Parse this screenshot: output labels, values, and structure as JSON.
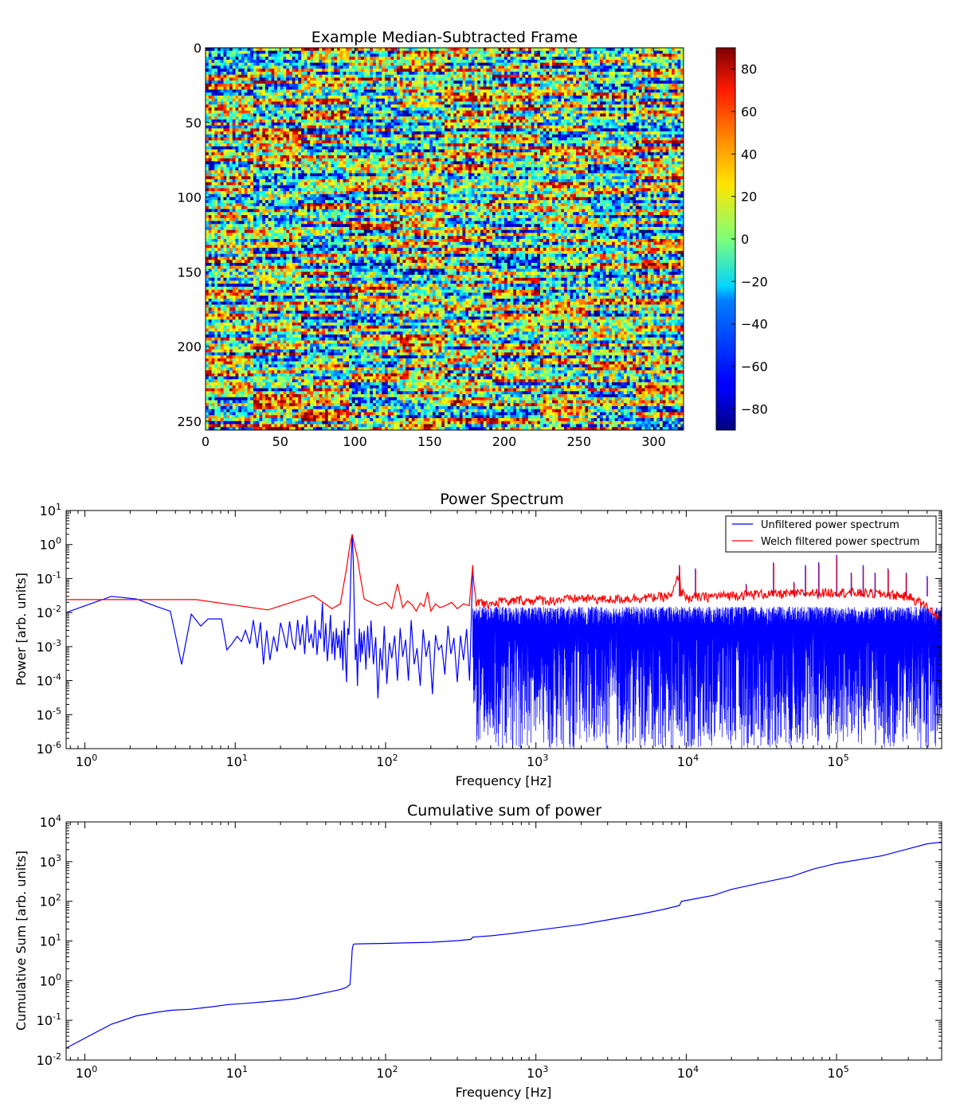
{
  "chart_data": [
    {
      "type": "heatmap",
      "title": "Example Median-Subtracted Frame",
      "xlabel": "",
      "ylabel": "",
      "xlim": [
        0,
        320
      ],
      "ylim": [
        256,
        0
      ],
      "xticks": [
        0,
        50,
        100,
        150,
        200,
        250,
        300
      ],
      "yticks": [
        0,
        50,
        100,
        150,
        200,
        250
      ],
      "columns": 320,
      "rows": 256,
      "column_block_width": 32,
      "colorbar": {
        "colormap": "jet",
        "range": [
          -90,
          90
        ],
        "ticks": [
          80,
          60,
          40,
          20,
          0,
          -20,
          -40,
          -60,
          -80
        ],
        "tick_labels": [
          "80",
          "60",
          "40",
          "20",
          "0",
          "−20",
          "−40",
          "−60",
          "−80"
        ]
      }
    },
    {
      "type": "line",
      "title": "Power Spectrum",
      "xlabel": "Frequency [Hz]",
      "ylabel": "Power [arb. units]",
      "xscale": "log",
      "yscale": "log",
      "xlim": [
        0.75,
        500000
      ],
      "ylim": [
        1e-06,
        10
      ],
      "xtick_exponents": [
        0,
        1,
        2,
        3,
        4,
        5
      ],
      "ytick_exponents": [
        1,
        0,
        -1,
        -2,
        -3,
        -4,
        -5,
        -6
      ],
      "legend": {
        "position": "top-right",
        "entries": [
          "Unfiltered power spectrum",
          "Welch filtered power spectrum"
        ]
      },
      "series": [
        {
          "name": "Unfiltered power spectrum",
          "color": "#0000ff",
          "x": [
            0.75,
            1.5,
            2.2,
            3,
            3.7,
            4.4,
            5.1,
            5.9,
            6.6,
            7.3,
            8.1,
            8.8,
            9.5,
            10.3,
            11,
            11.7,
            12.5,
            13.2,
            14,
            14.7,
            15.4,
            16.2,
            17,
            18,
            19,
            20,
            21,
            22,
            23,
            24,
            25,
            26,
            27,
            28,
            29,
            30,
            31,
            32,
            33,
            34,
            35,
            36,
            37,
            38,
            39,
            40,
            41,
            42,
            43,
            44,
            45,
            46,
            47,
            48,
            49,
            50,
            51,
            52,
            53,
            54,
            55,
            56,
            57,
            58,
            59,
            60,
            61,
            62,
            63,
            64,
            65,
            66,
            67,
            68,
            69,
            70,
            72,
            74,
            76,
            78,
            80,
            83,
            86,
            89,
            92,
            95,
            98,
            102,
            106,
            110,
            115,
            120,
            125,
            130,
            136,
            142,
            148,
            155,
            162,
            170,
            178,
            186,
            195,
            205,
            215,
            225,
            236,
            248,
            260,
            272,
            285,
            300,
            315,
            330,
            346,
            362,
            380
          ],
          "y": [
            0.01,
            0.03,
            0.025,
            0.015,
            0.011,
            0.0003,
            0.009,
            0.004,
            0.0065,
            0.0065,
            0.0065,
            0.0008,
            0.0012,
            0.002,
            0.0014,
            0.003,
            0.0012,
            0.006,
            0.0009,
            0.0052,
            0.0003,
            0.003,
            0.0004,
            0.002,
            0.0007,
            0.005,
            0.0022,
            0.0009,
            0.0055,
            0.0014,
            0.0008,
            0.0062,
            0.0011,
            0.0045,
            0.0006,
            0.0082,
            0.0013,
            0.0024,
            0.0009,
            0.006,
            0.00057,
            0.0031,
            0.0017,
            0.019,
            0.0007,
            0.0049,
            0.00037,
            0.0014,
            0.0085,
            0.0006,
            0.0028,
            0.0004,
            0.0035,
            0.0009,
            0.0022,
            0.00045,
            0.003,
            0.0002,
            0.0058,
            0.0006,
            9e-05,
            0.0035,
            0.0022,
            0.015,
            0.3,
            2.0,
            0.3,
            0.01,
            0.0004,
            0.0012,
            7e-05,
            0.001,
            0.0034,
            0.00035,
            0.0026,
            0.0006,
            0.0029,
            0.00021,
            0.0041,
            0.00046,
            0.0058,
            0.0003,
            0.0019,
            3e-05,
            0.0009,
            0.0002,
            0.004,
            8e-05,
            0.0013,
            0.00045,
            0.0021,
            0.0001,
            0.0035,
            0.0005,
            0.0016,
            0.0001,
            0.006,
            0.0003,
            0.0009,
            7e-05,
            0.0032,
            0.0005,
            0.0015,
            4e-05,
            0.0022,
            0.0008,
            0.0011,
            0.00015,
            0.0041,
            0.0006,
            0.0018,
            9e-05,
            0.0021,
            0.0004,
            0.0033,
            0.0001,
            0.2
          ],
          "noise_band": {
            "x_range": [
              380,
              500000
            ],
            "upper": 0.012,
            "lower": 1e-06,
            "description": "dense unresolved noise spanning the plot floor to about 1e-2"
          }
        },
        {
          "name": "Welch filtered power spectrum",
          "color": "#ff0000",
          "x": [
            0.75,
            5.5,
            16.5,
            33,
            44,
            50,
            55,
            58,
            60,
            62,
            65,
            68,
            72,
            80,
            88,
            100,
            110,
            120,
            130,
            140,
            150,
            160,
            170,
            180,
            190,
            200,
            215,
            230,
            250,
            275,
            300,
            330,
            360,
            380,
            400,
            430,
            460,
            500,
            550,
            600,
            650,
            700,
            800,
            900,
            1000,
            1200,
            1500,
            2000,
            3000,
            5000,
            8000,
            9000,
            9200,
            9500,
            10000,
            15000,
            20000,
            30000,
            50000,
            100000,
            200000,
            300000,
            400000,
            500000
          ],
          "y": [
            0.024,
            0.024,
            0.012,
            0.032,
            0.013,
            0.018,
            0.2,
            1.0,
            2.0,
            1.0,
            0.4,
            0.11,
            0.025,
            0.02,
            0.016,
            0.02,
            0.013,
            0.07,
            0.014,
            0.022,
            0.017,
            0.011,
            0.019,
            0.015,
            0.04,
            0.011,
            0.018,
            0.014,
            0.016,
            0.02,
            0.013,
            0.018,
            0.016,
            0.25,
            0.015,
            0.024,
            0.015,
            0.02,
            0.018,
            0.026,
            0.017,
            0.022,
            0.024,
            0.021,
            0.025,
            0.022,
            0.024,
            0.026,
            0.024,
            0.027,
            0.03,
            0.15,
            0.03,
            0.05,
            0.026,
            0.03,
            0.032,
            0.035,
            0.035,
            0.04,
            0.035,
            0.03,
            0.015,
            0.006
          ],
          "spikes": [
            {
              "x": 9000,
              "y": 0.25
            },
            {
              "x": 11500,
              "y": 0.2
            },
            {
              "x": 25000,
              "y": 0.07
            },
            {
              "x": 38000,
              "y": 0.3
            },
            {
              "x": 52000,
              "y": 0.08
            },
            {
              "x": 62000,
              "y": 0.25
            },
            {
              "x": 76000,
              "y": 0.3
            },
            {
              "x": 100000,
              "y": 0.5
            },
            {
              "x": 125000,
              "y": 0.15
            },
            {
              "x": 150000,
              "y": 0.25
            },
            {
              "x": 180000,
              "y": 0.15
            },
            {
              "x": 220000,
              "y": 0.2
            },
            {
              "x": 290000,
              "y": 0.15
            },
            {
              "x": 400000,
              "y": 0.12
            }
          ]
        }
      ]
    },
    {
      "type": "line",
      "title": "Cumulative sum of power",
      "xlabel": "Frequency [Hz]",
      "ylabel": "Cumulative Sum [arb. units]",
      "xscale": "log",
      "yscale": "log",
      "xlim": [
        0.75,
        500000
      ],
      "ylim": [
        0.01,
        10000
      ],
      "xtick_exponents": [
        0,
        1,
        2,
        3,
        4,
        5
      ],
      "ytick_exponents": [
        4,
        3,
        2,
        1,
        0,
        -1,
        -2
      ],
      "series": [
        {
          "name": "Cumulative sum",
          "color": "#0000ff",
          "x": [
            0.75,
            1.5,
            2.2,
            3,
            3.8,
            5,
            7,
            9,
            12,
            15,
            20,
            25,
            30,
            35,
            40,
            45,
            50,
            55,
            58,
            59,
            60,
            61,
            62,
            70,
            100,
            200,
            300,
            370,
            380,
            500,
            700,
            1000,
            2000,
            3000,
            5000,
            7000,
            9000,
            9300,
            10000,
            15000,
            20000,
            30000,
            50000,
            70000,
            100000,
            200000,
            300000,
            400000,
            500000
          ],
          "y": [
            0.02,
            0.08,
            0.13,
            0.16,
            0.18,
            0.19,
            0.22,
            0.25,
            0.27,
            0.29,
            0.32,
            0.35,
            0.4,
            0.45,
            0.5,
            0.55,
            0.6,
            0.68,
            0.8,
            2.0,
            6.0,
            8.2,
            8.4,
            8.5,
            8.7,
            9.3,
            10.2,
            11,
            12.5,
            13.5,
            15.5,
            18.5,
            26,
            34,
            48,
            62,
            78,
            100,
            105,
            140,
            200,
            280,
            420,
            650,
            900,
            1400,
            2100,
            2800,
            3100
          ]
        }
      ]
    }
  ]
}
